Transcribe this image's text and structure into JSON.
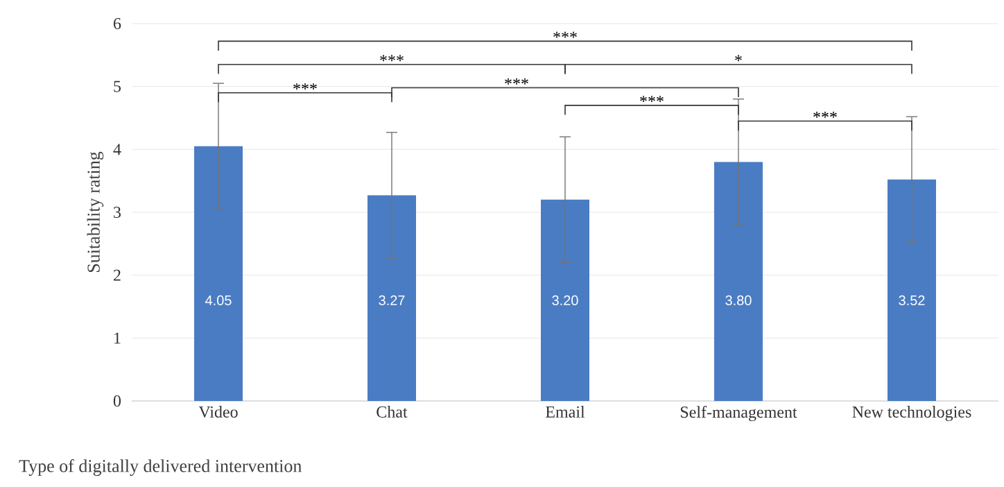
{
  "chart_data": {
    "type": "bar",
    "ylabel": "Suitability rating",
    "xlabel": "Type of digitally delivered intervention",
    "categories": [
      "Video",
      "Chat",
      "Email",
      "Self-management",
      "New technologies"
    ],
    "values": [
      4.05,
      3.27,
      3.2,
      3.8,
      3.52
    ],
    "value_labels": [
      "4.05",
      "3.27",
      "3.20",
      "3.80",
      "3.52"
    ],
    "errors": [
      1.0,
      1.0,
      1.0,
      1.0,
      1.0
    ],
    "color": "#4a7cc4",
    "ylim": [
      0,
      6
    ],
    "yticks": [
      0,
      1,
      2,
      3,
      4,
      5,
      6
    ],
    "grid": "y",
    "annotations": [
      "***",
      "***",
      "***",
      "*",
      "***",
      "***",
      "***"
    ]
  }
}
